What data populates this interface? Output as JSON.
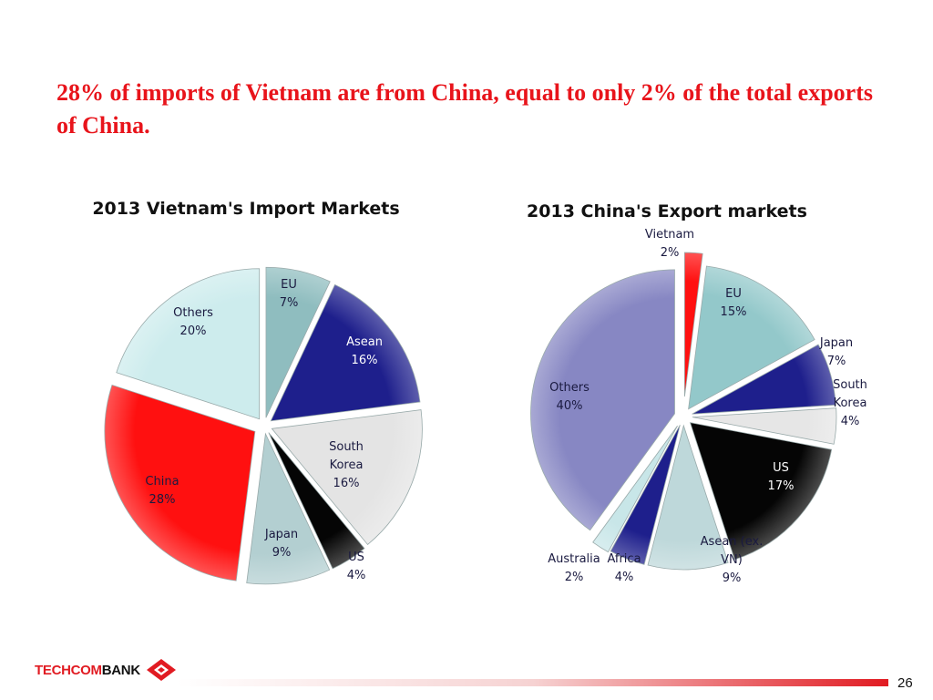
{
  "title": "28% of imports of Vietnam are from China, equal to only 2% of the total exports of China.",
  "chart_data": [
    {
      "type": "pie",
      "title": "2013 Vietnam's Import Markets",
      "slices": [
        {
          "label": "EU",
          "value": 7,
          "color": "#8fbdbf"
        },
        {
          "label": "Asean",
          "value": 16,
          "color": "#1e1f8c"
        },
        {
          "label": "South Korea",
          "value": 16,
          "color": "#e4e4e4"
        },
        {
          "label": "US",
          "value": 4,
          "color": "#050505"
        },
        {
          "label": "Japan",
          "value": 9,
          "color": "#b3cfd1"
        },
        {
          "label": "China",
          "value": 28,
          "color": "#ff1010"
        },
        {
          "label": "Others",
          "value": 20,
          "color": "#cdeced"
        }
      ]
    },
    {
      "type": "pie",
      "title": "2013 China's Export markets",
      "slices": [
        {
          "label": "Vietnam",
          "value": 2,
          "color": "#ff1010"
        },
        {
          "label": "EU",
          "value": 15,
          "color": "#93c8ca"
        },
        {
          "label": "Japan",
          "value": 7,
          "color": "#1e1f8c"
        },
        {
          "label": "South Korea",
          "value": 4,
          "color": "#e6e6e6"
        },
        {
          "label": "US",
          "value": 17,
          "color": "#050505"
        },
        {
          "label": "Asean (ex. VN)",
          "value": 9,
          "color": "#bed8da"
        },
        {
          "label": "Africa",
          "value": 4,
          "color": "#1e1f8c"
        },
        {
          "label": "Australia",
          "value": 2,
          "color": "#c8e6e8"
        },
        {
          "label": "Others",
          "value": 40,
          "color": "#8787c3"
        }
      ]
    }
  ],
  "footer": {
    "logo_part1": "TECHCOM",
    "logo_part2": "BANK",
    "page_number": "26",
    "brand_color": "#e11b22"
  }
}
